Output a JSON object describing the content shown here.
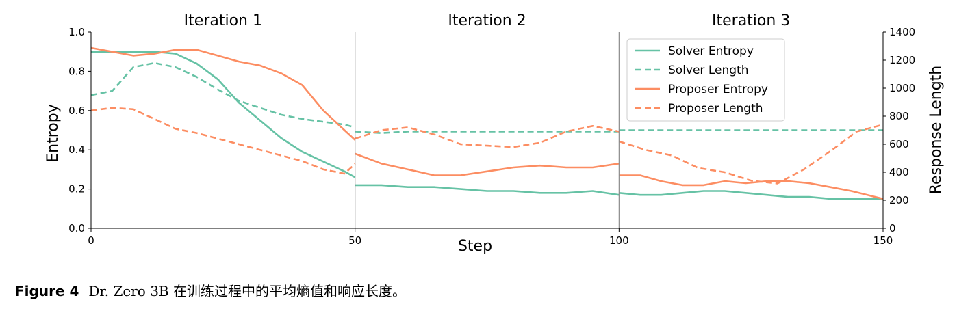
{
  "chart_data": {
    "type": "line",
    "panels": [
      "Iteration 1",
      "Iteration 2",
      "Iteration 3"
    ],
    "xlabel": "Step",
    "ylabel": "Entropy",
    "y2label": "Response Length",
    "xlim": [
      0,
      150
    ],
    "ylim": [
      0,
      1.0
    ],
    "y2lim": [
      0,
      1400
    ],
    "x_ticks": [
      0,
      50,
      100,
      150
    ],
    "y_ticks": [
      0.0,
      0.2,
      0.4,
      0.6,
      0.8,
      1.0
    ],
    "y2_ticks": [
      0,
      200,
      400,
      600,
      800,
      1000,
      1200,
      1400
    ],
    "legend_position": "top-right",
    "grid": false,
    "series": [
      {
        "name": "Solver Entropy",
        "axis": "left",
        "style": "solid",
        "color": "#66c2a5",
        "x": [
          0,
          4,
          8,
          12,
          16,
          20,
          24,
          28,
          32,
          36,
          40,
          44,
          48,
          50,
          50,
          55,
          60,
          65,
          70,
          75,
          80,
          85,
          90,
          95,
          100,
          100,
          104,
          108,
          112,
          116,
          120,
          124,
          128,
          132,
          136,
          140,
          144,
          150
        ],
        "y": [
          0.9,
          0.9,
          0.9,
          0.9,
          0.89,
          0.84,
          0.76,
          0.64,
          0.55,
          0.46,
          0.39,
          0.34,
          0.29,
          0.26,
          0.22,
          0.22,
          0.21,
          0.21,
          0.2,
          0.19,
          0.19,
          0.18,
          0.18,
          0.19,
          0.17,
          0.18,
          0.17,
          0.17,
          0.18,
          0.19,
          0.19,
          0.18,
          0.17,
          0.16,
          0.16,
          0.15,
          0.15,
          0.15
        ]
      },
      {
        "name": "Solver Length",
        "axis": "right",
        "style": "dashed",
        "color": "#66c2a5",
        "x": [
          0,
          4,
          8,
          12,
          16,
          20,
          24,
          28,
          32,
          36,
          40,
          44,
          48,
          50,
          50,
          55,
          60,
          65,
          70,
          75,
          80,
          85,
          90,
          95,
          100,
          100,
          105,
          110,
          115,
          120,
          125,
          130,
          135,
          140,
          145,
          150
        ],
        "y": [
          950,
          980,
          1150,
          1180,
          1150,
          1080,
          990,
          910,
          860,
          810,
          780,
          760,
          740,
          720,
          690,
          680,
          690,
          690,
          690,
          690,
          690,
          690,
          690,
          690,
          690,
          700,
          700,
          700,
          700,
          700,
          700,
          700,
          700,
          700,
          700,
          700
        ]
      },
      {
        "name": "Proposer Entropy",
        "axis": "left",
        "style": "solid",
        "color": "#fc8d62",
        "x": [
          0,
          4,
          8,
          12,
          16,
          20,
          24,
          28,
          32,
          36,
          40,
          44,
          48,
          50,
          50,
          55,
          60,
          65,
          70,
          75,
          80,
          85,
          90,
          95,
          100,
          100,
          104,
          108,
          112,
          116,
          120,
          124,
          128,
          132,
          136,
          140,
          144,
          150
        ],
        "y": [
          0.92,
          0.9,
          0.88,
          0.89,
          0.91,
          0.91,
          0.88,
          0.85,
          0.83,
          0.79,
          0.73,
          0.6,
          0.5,
          0.45,
          0.38,
          0.33,
          0.3,
          0.27,
          0.27,
          0.29,
          0.31,
          0.32,
          0.31,
          0.31,
          0.33,
          0.27,
          0.27,
          0.24,
          0.22,
          0.22,
          0.24,
          0.23,
          0.24,
          0.24,
          0.23,
          0.21,
          0.19,
          0.15
        ]
      },
      {
        "name": "Proposer Length",
        "axis": "right",
        "style": "dashed",
        "color": "#fc8d62",
        "x": [
          0,
          4,
          8,
          12,
          16,
          20,
          24,
          28,
          32,
          36,
          40,
          44,
          48,
          50,
          50,
          55,
          60,
          65,
          70,
          75,
          80,
          85,
          90,
          95,
          100,
          100,
          105,
          110,
          115,
          120,
          125,
          130,
          135,
          140,
          145,
          150
        ],
        "y": [
          840,
          860,
          850,
          780,
          710,
          680,
          640,
          600,
          560,
          520,
          480,
          420,
          390,
          460,
          640,
          700,
          720,
          670,
          600,
          590,
          580,
          610,
          690,
          730,
          690,
          620,
          560,
          520,
          430,
          400,
          340,
          320,
          420,
          550,
          690,
          740
        ]
      }
    ]
  },
  "caption": {
    "label": "Figure 4",
    "text": "Dr. Zero 3B 在训练过程中的平均熵值和响应长度。"
  }
}
